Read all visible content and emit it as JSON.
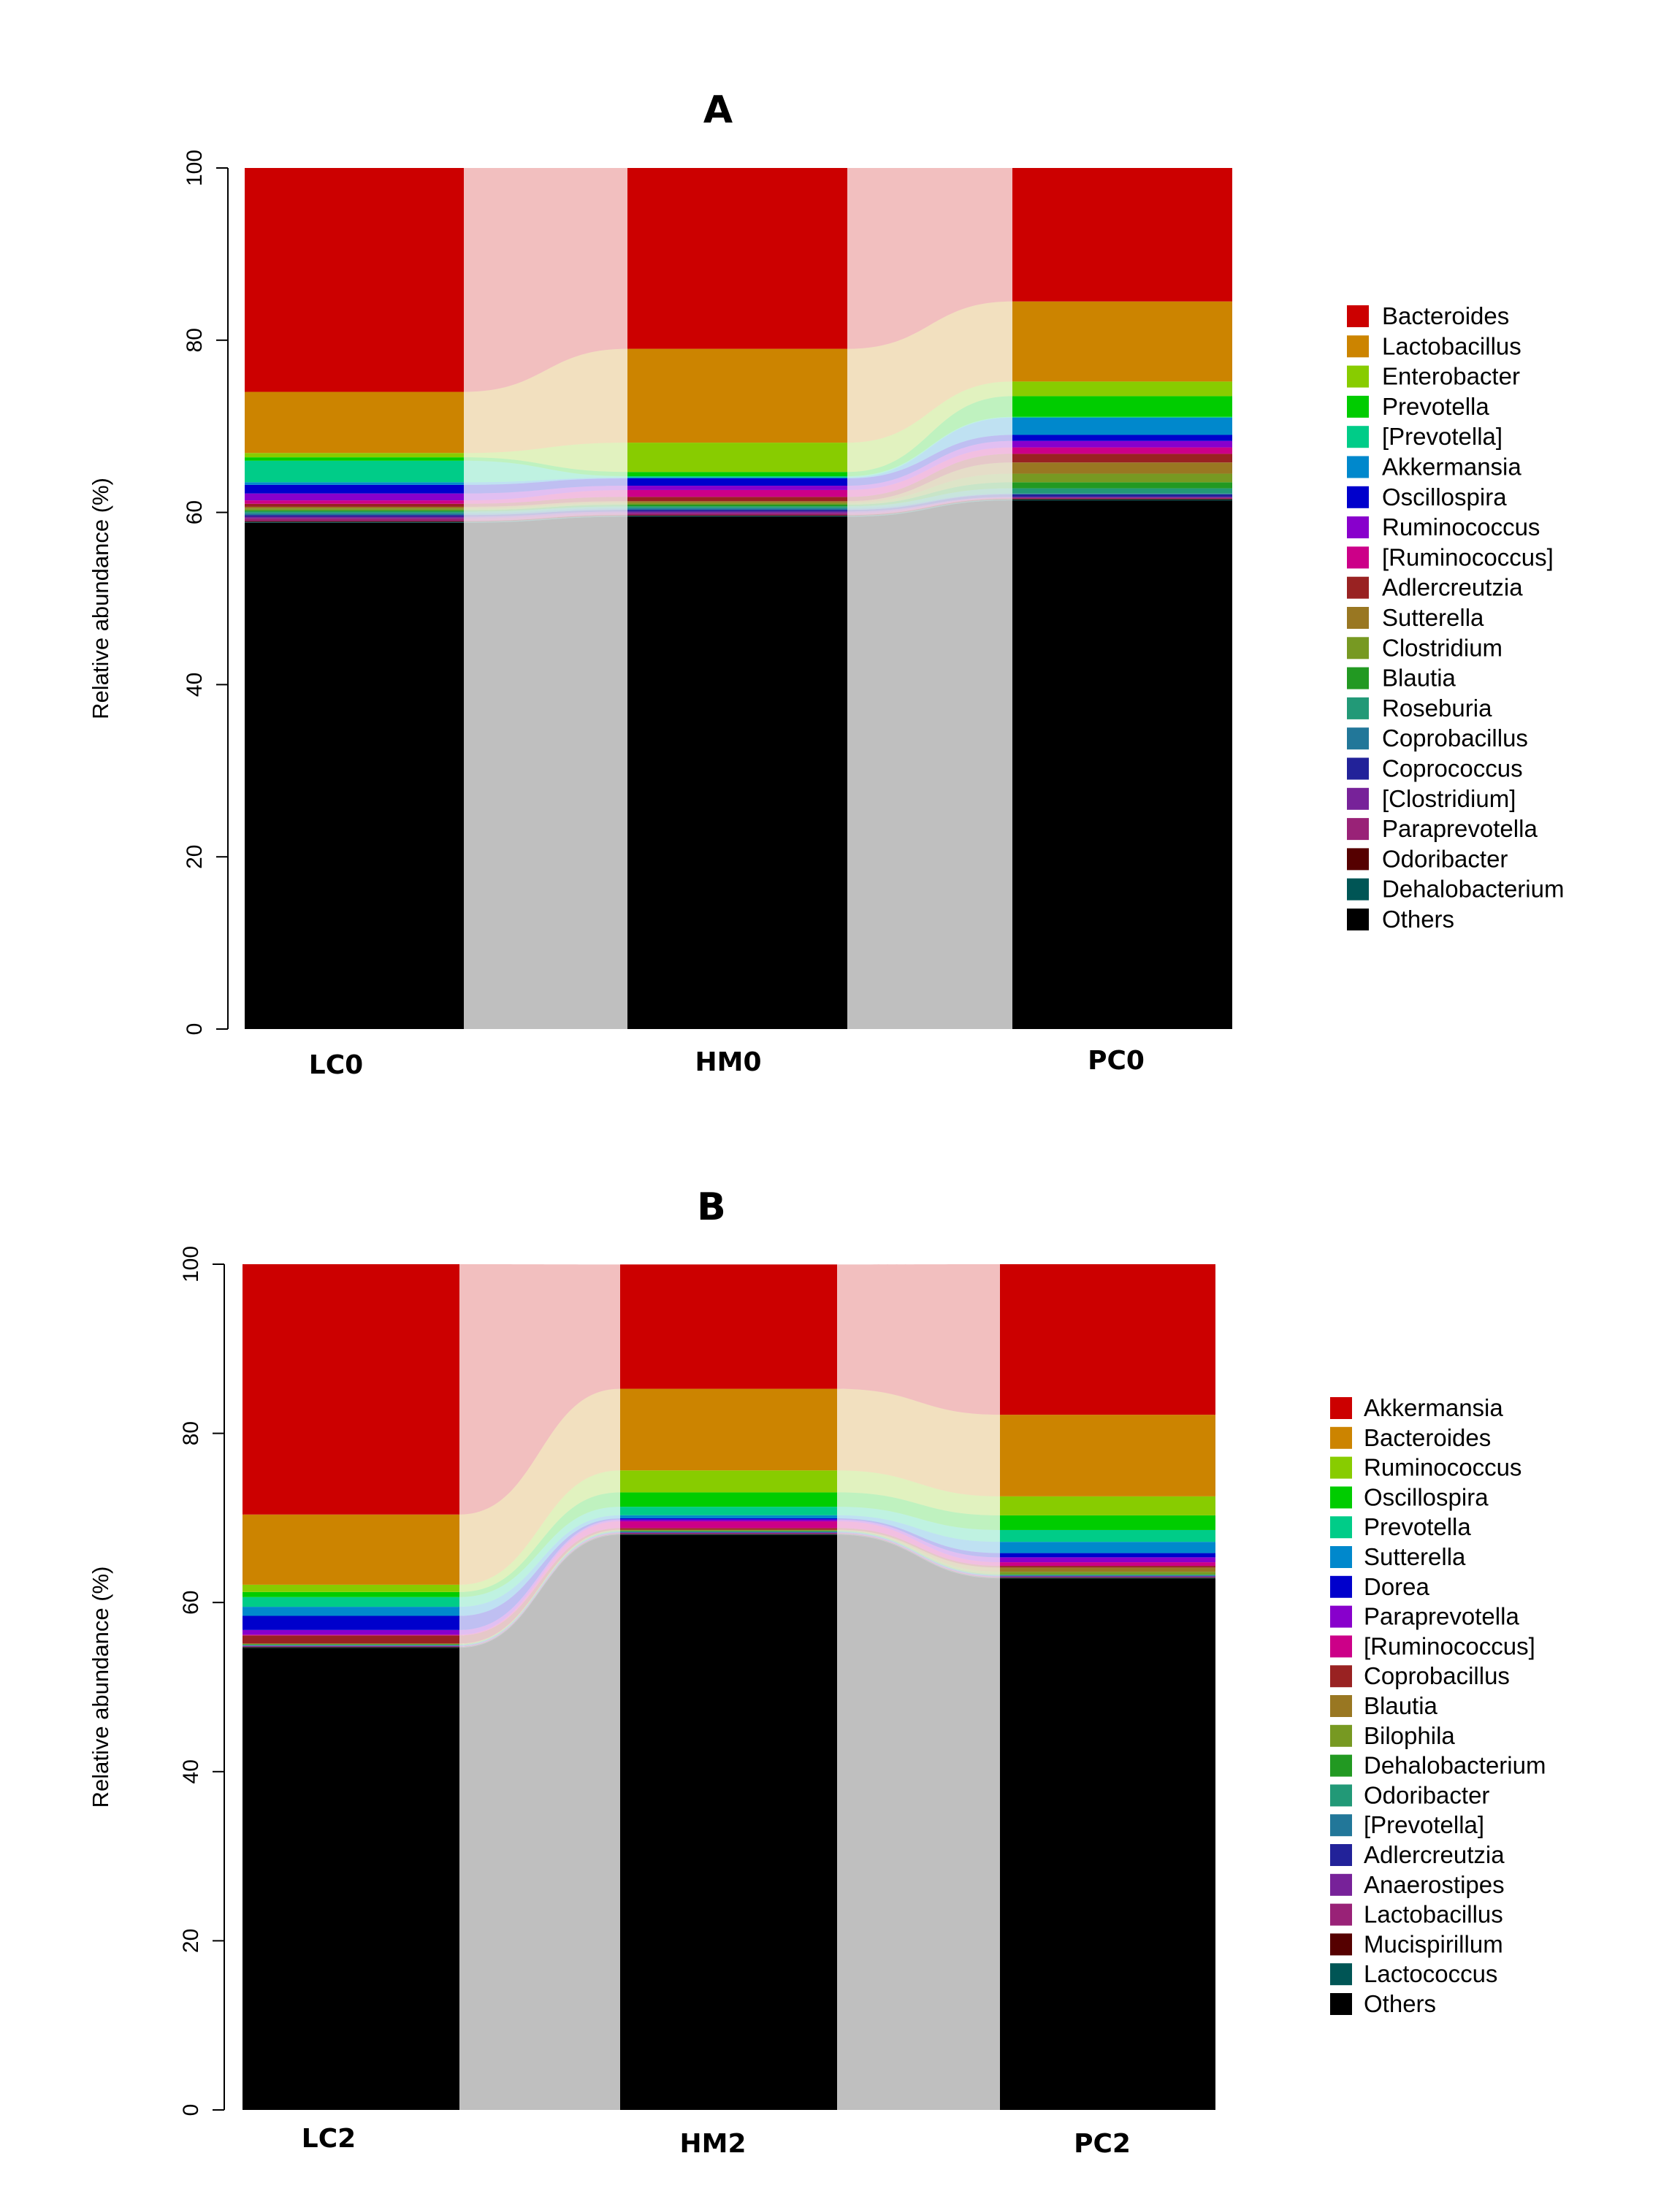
{
  "chart_data": [
    {
      "type": "bar",
      "subtype": "stacked-alluvial",
      "title": "A",
      "ylabel": "Relative abundance (%)",
      "ylim": [
        0,
        100
      ],
      "yticks": [
        "0",
        "20",
        "40",
        "60",
        "80",
        "100"
      ],
      "categories": [
        "LC0",
        "HM0",
        "PC0"
      ],
      "legend_position": "right",
      "series": [
        {
          "name": "Bacteroides",
          "color": "#CC0000",
          "values": [
            26.0,
            21.0,
            15.5
          ]
        },
        {
          "name": "Lactobacillus",
          "color": "#CC8400",
          "values": [
            7.1,
            10.9,
            9.3
          ]
        },
        {
          "name": "Enterobacter",
          "color": "#88CC00",
          "values": [
            0.5,
            3.4,
            1.7
          ]
        },
        {
          "name": "Prevotella",
          "color": "#00CC00",
          "values": [
            0.4,
            0.5,
            2.4
          ]
        },
        {
          "name": "[Prevotella]",
          "color": "#00CC88",
          "values": [
            2.5,
            0.15,
            0.1
          ]
        },
        {
          "name": "Akkermansia",
          "color": "#0088CC",
          "values": [
            0.3,
            0.1,
            2.0
          ]
        },
        {
          "name": "Oscillospira",
          "color": "#0000CC",
          "values": [
            1.0,
            0.85,
            0.7
          ]
        },
        {
          "name": "Ruminococcus",
          "color": "#8800CC",
          "values": [
            0.8,
            0.5,
            0.75
          ]
        },
        {
          "name": "[Ruminococcus]",
          "color": "#CC0088",
          "values": [
            0.4,
            0.8,
            0.75
          ]
        },
        {
          "name": "Adlercreutzia",
          "color": "#992222",
          "values": [
            0.35,
            0.5,
            1.0
          ]
        },
        {
          "name": "Sutterella",
          "color": "#997722",
          "values": [
            0.2,
            0.2,
            1.3
          ]
        },
        {
          "name": "Clostridium",
          "color": "#779922",
          "values": [
            0.2,
            0.2,
            1.0
          ]
        },
        {
          "name": "Blautia",
          "color": "#229922",
          "values": [
            0.15,
            0.2,
            0.7
          ]
        },
        {
          "name": "Roseburia",
          "color": "#229977",
          "values": [
            0.2,
            0.2,
            0.6
          ]
        },
        {
          "name": "Coprobacillus",
          "color": "#227799",
          "values": [
            0.2,
            0.2,
            0.1
          ]
        },
        {
          "name": "Coprococcus",
          "color": "#222299",
          "values": [
            0.2,
            0.2,
            0.3
          ]
        },
        {
          "name": "[Clostridium]",
          "color": "#772299",
          "values": [
            0.2,
            0.2,
            0.1
          ]
        },
        {
          "name": "Paraprevotella",
          "color": "#992277",
          "values": [
            0.3,
            0.2,
            0.1
          ]
        },
        {
          "name": "Odoribacter",
          "color": "#550000",
          "values": [
            0.1,
            0.1,
            0.1
          ]
        },
        {
          "name": "Dehalobacterium",
          "color": "#005555",
          "values": [
            0.1,
            0.1,
            0.1
          ]
        },
        {
          "name": "Others",
          "color": "#000000",
          "values": [
            58.8,
            59.5,
            61.4
          ]
        }
      ]
    },
    {
      "type": "bar",
      "subtype": "stacked-alluvial",
      "title": "B",
      "ylabel": "Relative abundance (%)",
      "ylim": [
        0,
        100
      ],
      "yticks": [
        "0",
        "20",
        "40",
        "60",
        "80",
        "100"
      ],
      "categories": [
        "LC2",
        "HM2",
        "PC2"
      ],
      "legend_position": "right",
      "series": [
        {
          "name": "Akkermansia",
          "color": "#CC0000",
          "values": [
            29.6,
            14.7,
            17.8
          ]
        },
        {
          "name": "Bacteroides",
          "color": "#CC8400",
          "values": [
            8.3,
            9.65,
            9.65
          ]
        },
        {
          "name": "Ruminococcus",
          "color": "#88CC00",
          "values": [
            0.86,
            2.6,
            2.25
          ]
        },
        {
          "name": "Oscillospira",
          "color": "#00CC00",
          "values": [
            0.6,
            1.7,
            1.73
          ]
        },
        {
          "name": "Prevotella",
          "color": "#00CC88",
          "values": [
            1.15,
            1.0,
            1.4
          ]
        },
        {
          "name": "Sutterella",
          "color": "#0088CC",
          "values": [
            1.07,
            0.37,
            1.33
          ]
        },
        {
          "name": "Dorea",
          "color": "#0000CC",
          "values": [
            1.67,
            0.15,
            0.5
          ]
        },
        {
          "name": "Paraprevotella",
          "color": "#8800CC",
          "values": [
            0.55,
            0.2,
            0.58
          ]
        },
        {
          "name": "[Ruminococcus]",
          "color": "#CC0088",
          "values": [
            0.1,
            0.8,
            0.43
          ]
        },
        {
          "name": "Coprobacillus",
          "color": "#992222",
          "values": [
            0.95,
            0.2,
            0.2
          ]
        },
        {
          "name": "Blautia",
          "color": "#997722",
          "values": [
            0.05,
            0.06,
            0.5
          ]
        },
        {
          "name": "Bilophila",
          "color": "#779922",
          "values": [
            0.05,
            0.06,
            0.3
          ]
        },
        {
          "name": "Dehalobacterium",
          "color": "#229922",
          "values": [
            0.05,
            0.06,
            0.06
          ]
        },
        {
          "name": "Odoribacter",
          "color": "#229977",
          "values": [
            0.05,
            0.06,
            0.06
          ]
        },
        {
          "name": "[Prevotella]",
          "color": "#227799",
          "values": [
            0.05,
            0.06,
            0.06
          ]
        },
        {
          "name": "Adlercreutzia",
          "color": "#222299",
          "values": [
            0.05,
            0.06,
            0.06
          ]
        },
        {
          "name": "Anaerostipes",
          "color": "#772299",
          "values": [
            0.05,
            0.06,
            0.06
          ]
        },
        {
          "name": "Lactobacillus",
          "color": "#992277",
          "values": [
            0.05,
            0.06,
            0.06
          ]
        },
        {
          "name": "Mucispirillum",
          "color": "#550000",
          "values": [
            0.05,
            0.06,
            0.06
          ]
        },
        {
          "name": "Lactococcus",
          "color": "#005555",
          "values": [
            0.05,
            0.06,
            0.06
          ]
        },
        {
          "name": "Others",
          "color": "#000000",
          "values": [
            54.65,
            68.0,
            62.85
          ]
        }
      ]
    }
  ]
}
